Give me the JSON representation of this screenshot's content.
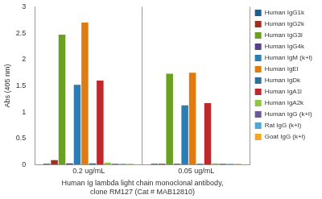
{
  "chart_data": {
    "type": "bar",
    "x_label": [
      "Human Ig lambda light chain monoclonal antibody,",
      "clone RM127 (Cat # MAB12810)"
    ],
    "y_label": "Abs (405 nm)",
    "categories": [
      "0.2 ug/mL",
      "0.05 ug/mL"
    ],
    "series": [
      {
        "name": "Human IgG1k",
        "color": "#1f5d8c",
        "values": [
          0.02,
          0.02
        ]
      },
      {
        "name": "Human IgG2k",
        "color": "#a0301c",
        "values": [
          0.09,
          0.02
        ]
      },
      {
        "name": "Human IgG3l",
        "color": "#6aa121",
        "values": [
          2.47,
          1.73
        ]
      },
      {
        "name": "Human IgG4k",
        "color": "#5b3f8a",
        "values": [
          0.03,
          0.02
        ]
      },
      {
        "name": "Human IgM (k+l)",
        "color": "#2a7db5",
        "values": [
          1.52,
          1.13
        ]
      },
      {
        "name": "Human IgEl",
        "color": "#e07b10",
        "values": [
          2.7,
          1.75
        ]
      },
      {
        "name": "Human IgDk",
        "color": "#2e6fa0",
        "values": [
          0.03,
          0.02
        ]
      },
      {
        "name": "Human IgA1l",
        "color": "#c0282a",
        "values": [
          1.6,
          1.17
        ]
      },
      {
        "name": "Human IgA2k",
        "color": "#8dc63f",
        "values": [
          0.04,
          0.03
        ]
      },
      {
        "name": "Human IgG (k+l)",
        "color": "#6a5a9a",
        "values": [
          0.02,
          0.02
        ]
      },
      {
        "name": "Rat IgG (k+l)",
        "color": "#4fa7d4",
        "values": [
          0.02,
          0.02
        ]
      },
      {
        "name": "Goat IgG (k+l)",
        "color": "#f5a623",
        "values": [
          0.02,
          0.02
        ]
      }
    ],
    "ylim": [
      0,
      3
    ],
    "yticks": [
      0,
      0.5,
      1,
      1.5,
      2,
      2.5,
      3
    ],
    "grid": true,
    "legend": "right"
  }
}
